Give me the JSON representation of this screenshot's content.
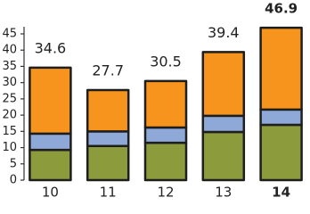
{
  "chart_data": {
    "type": "stacked-bar",
    "categories": [
      "10",
      "11",
      "12",
      "13",
      "14"
    ],
    "series": [
      {
        "color": "#8c9b3c",
        "values": [
          9.3,
          10.5,
          11.5,
          14.8,
          17
        ]
      },
      {
        "color": "#8ea8d8",
        "values": [
          5,
          4.5,
          4.7,
          5,
          4.7
        ]
      },
      {
        "color": "#f7941d",
        "values": [
          20.3,
          12.7,
          14.3,
          19.6,
          25.2
        ]
      }
    ],
    "totals": [
      34.6,
      27.7,
      30.5,
      39.4,
      46.9
    ],
    "highlight": 4,
    "ylim": [
      0,
      45
    ],
    "yticks": [
      0,
      5,
      10,
      15,
      20,
      25,
      30,
      35,
      40,
      45
    ]
  }
}
